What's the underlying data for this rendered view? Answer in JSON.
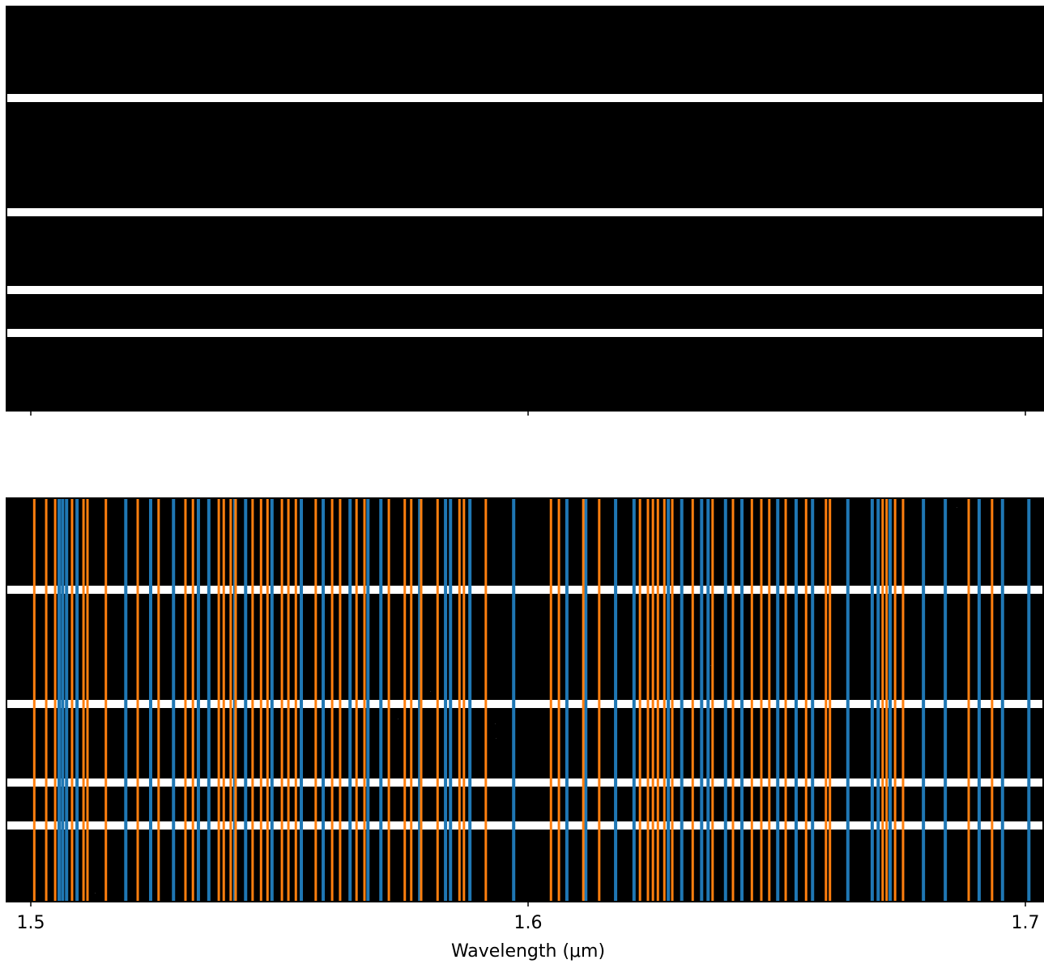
{
  "chart_data": {
    "type": "vlines",
    "xlabel": "Wavelength (μm)",
    "xlim": [
      1.49511,
      1.70358
    ],
    "xticks": [
      1.5,
      1.6,
      1.7
    ],
    "series": [
      {
        "color": "#1f77b4",
        "values": [
          1.5057,
          1.5064,
          1.5072,
          1.5093,
          1.5191,
          1.5241,
          1.5287,
          1.5337,
          1.5358,
          1.541,
          1.5432,
          1.5485,
          1.5544,
          1.5588,
          1.5642,
          1.5678,
          1.5704,
          1.5782,
          1.5834,
          1.5844,
          1.5883,
          1.5971,
          1.6078,
          1.6116,
          1.6176,
          1.6213,
          1.6282,
          1.6309,
          1.6349,
          1.6362,
          1.6397,
          1.643,
          1.6502,
          1.6539,
          1.6572,
          1.6643,
          1.6692,
          1.6704,
          1.6728,
          1.6795,
          1.6839,
          1.6907,
          1.6954,
          1.7007
        ]
      },
      {
        "color": "#ff7f0e",
        "values": [
          1.5007,
          1.5031,
          1.5049,
          1.5083,
          1.5106,
          1.5114,
          1.5151,
          1.5215,
          1.5257,
          1.5311,
          1.5326,
          1.5378,
          1.5388,
          1.5402,
          1.5412,
          1.5446,
          1.5463,
          1.5476,
          1.5505,
          1.5518,
          1.5533,
          1.5573,
          1.5606,
          1.5622,
          1.5655,
          1.5671,
          1.572,
          1.5752,
          1.5765,
          1.5785,
          1.5818,
          1.5862,
          1.5871,
          1.5915,
          1.6046,
          1.6062,
          1.6111,
          1.6143,
          1.6225,
          1.6241,
          1.6251,
          1.6261,
          1.6274,
          1.629,
          1.6331,
          1.6371,
          1.6412,
          1.645,
          1.6469,
          1.6485,
          1.6518,
          1.6559,
          1.6599,
          1.6607,
          1.6713,
          1.6721,
          1.6738,
          1.6754,
          1.6886,
          1.6933
        ]
      }
    ]
  }
}
